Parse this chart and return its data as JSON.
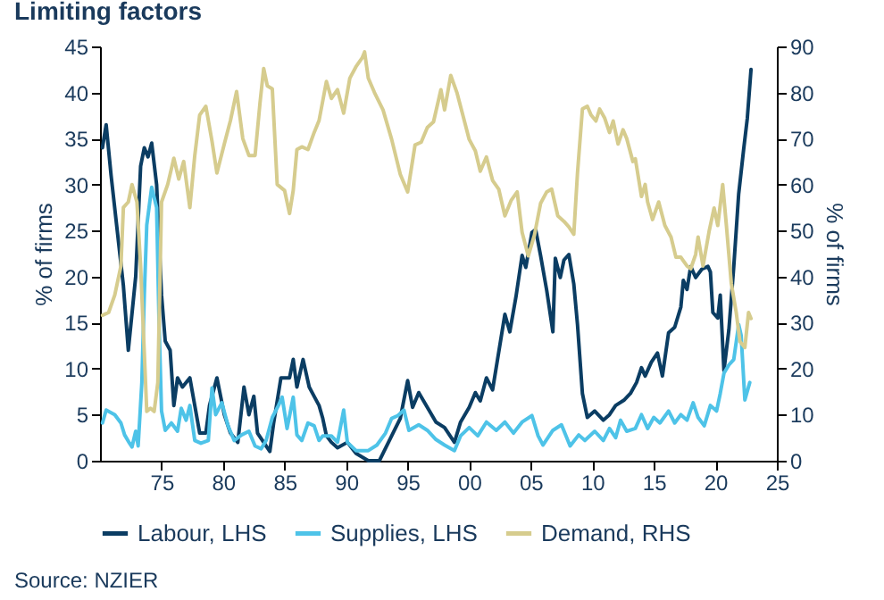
{
  "chart_data": {
    "type": "line",
    "title": "Limiting factors",
    "ylabel": "% of firms",
    "y2label": "% of firms",
    "xlim": [
      1970,
      2025
    ],
    "xticks": [
      {
        "value": 1975,
        "label": "75"
      },
      {
        "value": 1980,
        "label": "80"
      },
      {
        "value": 1985,
        "label": "85"
      },
      {
        "value": 1990,
        "label": "90"
      },
      {
        "value": 1995,
        "label": "95"
      },
      {
        "value": 2000,
        "label": "00"
      },
      {
        "value": 2005,
        "label": "05"
      },
      {
        "value": 2010,
        "label": "10"
      },
      {
        "value": 2015,
        "label": "15"
      },
      {
        "value": 2020,
        "label": "20"
      },
      {
        "value": 2025,
        "label": "25"
      }
    ],
    "ylim": [
      0,
      45
    ],
    "yticks": [
      0,
      5,
      10,
      15,
      20,
      25,
      30,
      35,
      40,
      45
    ],
    "y2lim": [
      0,
      90
    ],
    "y2ticks": [
      0,
      10,
      20,
      30,
      40,
      50,
      60,
      70,
      80,
      90
    ],
    "grid": false,
    "legend": "bottom",
    "line_style": "solid",
    "marker": "none",
    "annotations": [
      "Source: NZIER"
    ],
    "series": [
      {
        "name": "Labour, LHS",
        "color": "#0b3d63",
        "x": [
          1970.2,
          1970.5,
          1970.9,
          1971.4,
          1971.9,
          1972.3,
          1972.6,
          1972.9,
          1973.3,
          1973.6,
          1973.9,
          1974.2,
          1974.6,
          1975.0,
          1975.3,
          1975.7,
          1976.0,
          1976.3,
          1976.7,
          1977.3,
          1977.7,
          1978.1,
          1978.6,
          1978.9,
          1979.5,
          1980.1,
          1980.6,
          1981.2,
          1981.7,
          1982.1,
          1982.5,
          1982.8,
          1983.3,
          1983.8,
          1984.1,
          1984.7,
          1985.4,
          1985.7,
          1986.0,
          1986.5,
          1987.0,
          1987.4,
          1987.8,
          1988.1,
          1988.4,
          1988.8,
          1989.3,
          1990.1,
          1990.8,
          1991.8,
          1992.7,
          1993.7,
          1994.4,
          1995.0,
          1995.4,
          1995.9,
          1996.6,
          1997.3,
          1998.0,
          1998.8,
          1999.3,
          2000.0,
          2000.5,
          2000.9,
          2001.4,
          2001.9,
          2002.4,
          2002.9,
          2003.3,
          2003.8,
          2004.3,
          2004.6,
          2005.1,
          2005.4,
          2005.8,
          2006.3,
          2006.8,
          2007.0,
          2007.4,
          2007.7,
          2008.1,
          2008.5,
          2008.8,
          2009.2,
          2009.6,
          2010.2,
          2010.9,
          2011.4,
          2011.9,
          2012.6,
          2013.1,
          2013.6,
          2014.0,
          2014.3,
          2014.8,
          2015.3,
          2015.7,
          2016.2,
          2016.7,
          2017.2,
          2017.4,
          2017.7,
          2018.0,
          2018.4,
          2018.9,
          2019.4,
          2019.6,
          2019.8,
          2020.2,
          2020.4,
          2020.7,
          2021.1,
          2021.5,
          2021.9,
          2022.3,
          2022.6,
          2022.9
        ],
        "values": [
          34,
          36.5,
          31,
          25,
          19,
          12,
          16,
          20,
          32,
          34,
          33,
          34.5,
          30,
          18,
          13,
          12,
          6,
          9,
          8,
          9,
          6,
          3,
          3,
          6,
          9,
          5,
          3,
          2,
          8,
          5,
          7,
          3,
          2,
          1,
          4,
          9,
          9,
          11,
          8,
          11,
          8,
          7,
          6,
          4.6,
          2.7,
          2,
          1.4,
          2,
          0.8,
          0,
          0,
          2.7,
          4.6,
          8.7,
          5.8,
          7.4,
          5.8,
          4.2,
          3.6,
          2,
          4.2,
          5.8,
          7.4,
          6.5,
          9,
          7.7,
          11.8,
          15.9,
          14,
          17.8,
          22.3,
          21,
          24.8,
          25.1,
          22.3,
          18.5,
          14,
          22,
          19.9,
          21.8,
          22.4,
          19.2,
          14.8,
          7.3,
          4.7,
          5.4,
          4.4,
          5,
          6,
          6.6,
          7.3,
          8.5,
          10.1,
          9.2,
          10.7,
          11.7,
          9.2,
          13.9,
          14.5,
          16.7,
          19.6,
          18.6,
          21.1,
          19.9,
          20.8,
          21.1,
          20.5,
          16.1,
          15.5,
          18,
          9.8,
          14.2,
          21.1,
          29,
          33.8,
          37.2,
          42.5
        ]
      },
      {
        "name": "Supplies, LHS",
        "color": "#4ec3e8",
        "x": [
          1970.2,
          1970.5,
          1971.2,
          1971.7,
          1972.0,
          1972.4,
          1972.6,
          1972.9,
          1973.1,
          1973.4,
          1973.6,
          1973.8,
          1974.2,
          1974.6,
          1974.8,
          1975.0,
          1975.3,
          1975.8,
          1976.3,
          1976.6,
          1977.0,
          1977.3,
          1977.7,
          1978.2,
          1978.8,
          1979.1,
          1979.4,
          1979.9,
          1980.4,
          1980.9,
          1981.5,
          1982.1,
          1982.6,
          1983.1,
          1983.5,
          1984.0,
          1984.5,
          1984.8,
          1985.2,
          1985.7,
          1986.0,
          1986.4,
          1986.9,
          1987.4,
          1987.8,
          1988.1,
          1988.8,
          1989.3,
          1989.8,
          1990.1,
          1990.8,
          1991.8,
          1992.5,
          1993.2,
          1993.7,
          1994.2,
          1994.7,
          1995.1,
          1995.9,
          1996.6,
          1997.3,
          1998.0,
          1998.8,
          1999.3,
          2000.0,
          2000.7,
          2001.4,
          2002.2,
          2002.9,
          2003.6,
          2004.3,
          2005.1,
          2005.6,
          2006.0,
          2006.8,
          2007.5,
          2008.2,
          2008.9,
          2009.4,
          2010.2,
          2010.9,
          2011.4,
          2011.9,
          2012.3,
          2012.8,
          2013.5,
          2014.0,
          2014.5,
          2015.0,
          2015.5,
          2016.2,
          2016.7,
          2017.2,
          2017.7,
          2018.2,
          2018.6,
          2019.1,
          2019.6,
          2020.1,
          2020.4,
          2020.7,
          2021.1,
          2021.5,
          2021.9,
          2022.1,
          2022.4,
          2022.8
        ],
        "values": [
          4.1,
          5.5,
          5,
          4.1,
          2.8,
          1.9,
          1.5,
          3.2,
          1.6,
          8.5,
          18,
          25.6,
          29.7,
          27.5,
          14.8,
          5.4,
          3.3,
          4.1,
          3.2,
          5.7,
          4.4,
          6,
          2.2,
          1.9,
          2.2,
          7.9,
          5,
          6.3,
          3.8,
          2.2,
          2.8,
          3.2,
          1.6,
          1.3,
          2.2,
          4.7,
          6,
          6.9,
          3.5,
          6.9,
          2.8,
          2.2,
          4.1,
          3.8,
          2.2,
          2.7,
          2.7,
          2,
          5.5,
          2,
          1.1,
          1.1,
          1.7,
          3,
          4.6,
          4.9,
          5.5,
          3.3,
          3.9,
          3.3,
          2.3,
          1.7,
          1.1,
          2.7,
          3.6,
          2.7,
          4.2,
          3.3,
          4.2,
          3,
          4.2,
          4.9,
          2.7,
          1.7,
          3.3,
          3.9,
          1.6,
          2.8,
          2.2,
          3.2,
          2.2,
          3.5,
          2.5,
          4.4,
          3.2,
          3.5,
          5,
          3.5,
          4.7,
          4.1,
          5.4,
          4.1,
          5,
          4.4,
          6.3,
          4.7,
          3.8,
          6,
          5.4,
          7.3,
          9.5,
          10.4,
          11,
          14.8,
          13.6,
          6.6,
          8.5
        ]
      },
      {
        "name": "Demand, RHS",
        "color": "#d6cc8e",
        "axis": "y2",
        "x": [
          1970.2,
          1970.7,
          1971.2,
          1971.7,
          1971.9,
          1972.3,
          1972.6,
          1973.0,
          1973.3,
          1973.6,
          1973.8,
          1974.1,
          1974.4,
          1974.7,
          1975.0,
          1975.5,
          1976.0,
          1976.4,
          1976.8,
          1977.3,
          1977.7,
          1978.1,
          1978.6,
          1979.1,
          1979.5,
          1980.1,
          1980.6,
          1981.1,
          1981.6,
          1982.1,
          1982.6,
          1983.0,
          1983.3,
          1983.6,
          1984.0,
          1984.4,
          1985.0,
          1985.4,
          1985.7,
          1986.0,
          1986.4,
          1986.9,
          1987.4,
          1987.8,
          1988.4,
          1988.8,
          1989.3,
          1989.8,
          1990.3,
          1990.8,
          1991.3,
          1991.5,
          1991.8,
          1992.3,
          1993.0,
          1993.7,
          1994.4,
          1995.0,
          1995.6,
          1996.1,
          1996.6,
          1997.1,
          1997.7,
          1998.0,
          1998.5,
          1999.0,
          1999.5,
          2000.0,
          2000.5,
          2000.9,
          2001.4,
          2001.9,
          2002.4,
          2002.9,
          2003.4,
          2003.9,
          2004.3,
          2004.8,
          2005.3,
          2005.8,
          2006.3,
          2006.7,
          2007.2,
          2007.7,
          2008.1,
          2008.5,
          2008.8,
          2009.2,
          2009.6,
          2009.9,
          2010.3,
          2010.6,
          2011.0,
          2011.4,
          2011.7,
          2012.1,
          2012.5,
          2012.8,
          2013.3,
          2013.5,
          2014.0,
          2014.3,
          2014.5,
          2014.9,
          2015.4,
          2015.9,
          2016.4,
          2016.8,
          2017.2,
          2017.7,
          2018.0,
          2018.4,
          2018.6,
          2019.0,
          2019.5,
          2019.9,
          2020.2,
          2020.6,
          2020.9,
          2021.3,
          2021.7,
          2022.0,
          2022.4,
          2022.7,
          2022.9
        ],
        "values": [
          31.6,
          32.2,
          36,
          42.3,
          55,
          56.2,
          60,
          56.2,
          42.3,
          23.4,
          10.7,
          11.4,
          10.7,
          17,
          56.2,
          60,
          65.7,
          61.2,
          65,
          55,
          66.3,
          75.1,
          77,
          69.4,
          62.5,
          68.8,
          73.9,
          80.2,
          70,
          66.3,
          66.3,
          77.7,
          85.2,
          81.4,
          80.8,
          60,
          58.7,
          53.7,
          58.7,
          67.6,
          68.2,
          67.6,
          71.3,
          73.9,
          82.4,
          78.7,
          80.6,
          75.5,
          83.1,
          85.6,
          87.5,
          88.8,
          83.1,
          80,
          76.2,
          69.8,
          62.2,
          58.4,
          68.6,
          69.2,
          72.4,
          73.6,
          80.6,
          76.2,
          83.7,
          80,
          74.9,
          69.8,
          67.3,
          62.9,
          66,
          60.9,
          59,
          53.2,
          56.5,
          58.4,
          49.6,
          44.5,
          49,
          55.9,
          58.4,
          59,
          53.2,
          52,
          50.8,
          49.2,
          62.5,
          76.4,
          77,
          75.1,
          73.8,
          76.4,
          74.5,
          71.3,
          73.8,
          68.8,
          71.9,
          70,
          65,
          65.6,
          57.4,
          60,
          56.2,
          52.4,
          56.2,
          51.1,
          48.6,
          44.2,
          44.2,
          42.3,
          41.7,
          44.8,
          48.6,
          42.3,
          49.9,
          54.9,
          51.1,
          60,
          51.1,
          38.5,
          32.2,
          25.9,
          24.6,
          32.2,
          30.9
        ]
      }
    ]
  }
}
